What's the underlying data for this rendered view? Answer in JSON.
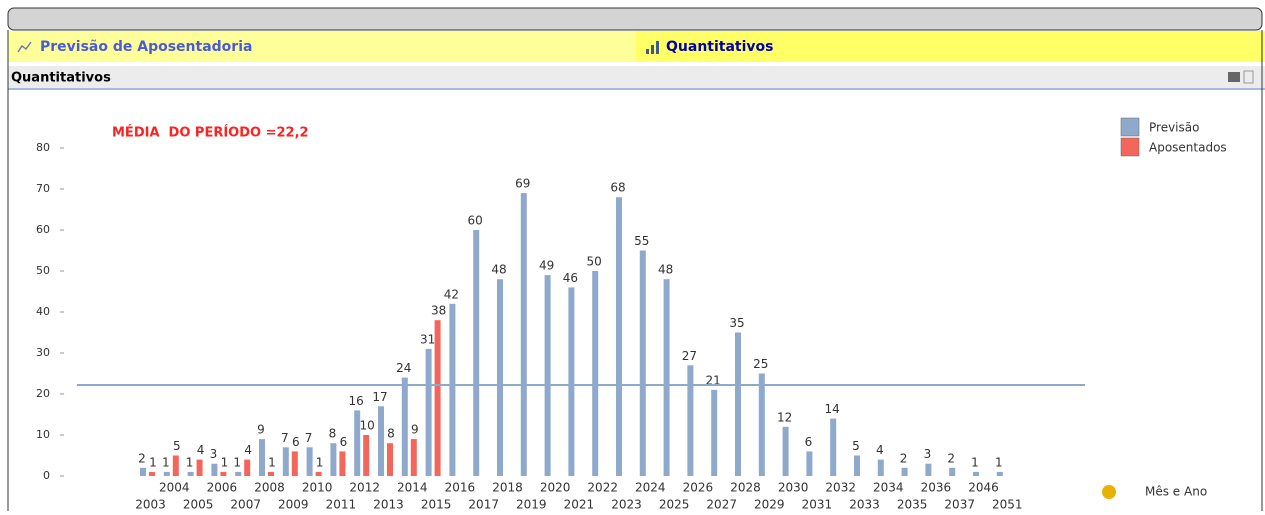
{
  "tabs": [
    "Previsão de Aposentadoria",
    "Quantitativos"
  ],
  "caption": "Quantitativos",
  "chart_data": {
    "type": "bar",
    "categories": [
      "2003",
      "2004",
      "2005",
      "2006",
      "2007",
      "2008",
      "2009",
      "2010",
      "2011",
      "2012",
      "2013",
      "2014",
      "2015",
      "2016",
      "2017",
      "2018",
      "2019",
      "2020",
      "2021",
      "2022",
      "2023",
      "2024",
      "2025",
      "2026",
      "2027",
      "2028",
      "2029",
      "2030",
      "2031",
      "2032",
      "2033",
      "2034",
      "2035",
      "2036",
      "2037",
      "2046",
      "2051"
    ],
    "series": [
      {
        "name": "Previsão",
        "color": "#8fa9cc",
        "values": [
          2,
          1,
          1,
          3,
          1,
          9,
          7,
          7,
          8,
          16,
          17,
          24,
          31,
          42,
          60,
          48,
          69,
          49,
          46,
          50,
          68,
          55,
          48,
          27,
          21,
          35,
          25,
          12,
          6,
          14,
          5,
          4,
          2,
          3,
          2,
          1,
          1
        ]
      },
      {
        "name": "Aposentados",
        "color": "#f4665c",
        "values": [
          1,
          5,
          4,
          1,
          4,
          1,
          6,
          1,
          6,
          10,
          8,
          9,
          38,
          null,
          null,
          null,
          null,
          null,
          null,
          null,
          null,
          null,
          null,
          null,
          null,
          null,
          null,
          null,
          null,
          null,
          null,
          null,
          null,
          null,
          null,
          null,
          null
        ]
      }
    ],
    "ylim": [
      0,
      80
    ],
    "yticks": [
      0,
      10,
      20,
      30,
      40,
      50,
      60,
      70,
      80
    ],
    "reference_line": {
      "value": 22.2,
      "label": "MÉDIA  DO PERÍODO =22,2",
      "color": "#8fa9cc"
    },
    "xlabel": "Mês e Ano",
    "legend": "top-right"
  }
}
